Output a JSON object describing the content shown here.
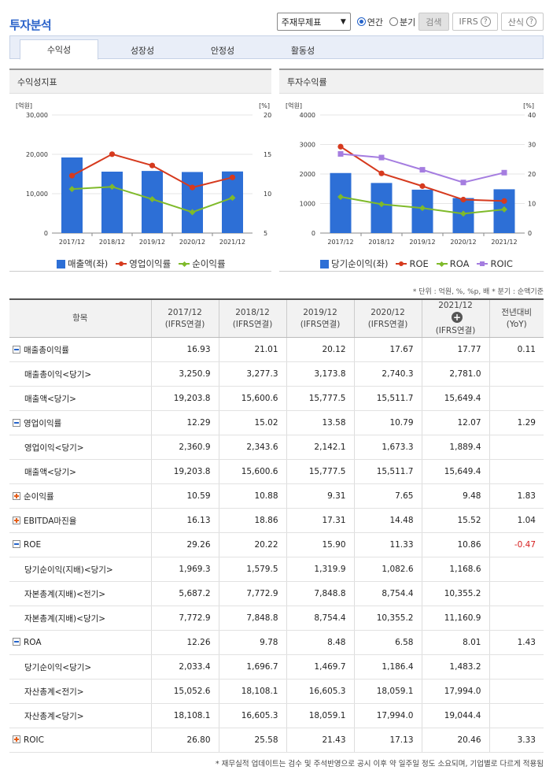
{
  "page": {
    "title": "투자분석",
    "controls": {
      "select_value": "주재무제표",
      "radio_annual": "연간",
      "radio_quarter": "분기",
      "search_btn": "검색",
      "ifrs_btn": "IFRS",
      "formula_btn": "산식",
      "selected_period": "연간"
    },
    "tabs": [
      "수익성",
      "성장성",
      "안정성",
      "활동성"
    ],
    "active_tab": "수익성"
  },
  "chart_data": [
    {
      "type": "bar+line",
      "title": "수익성지표",
      "left_unit": "[억원]",
      "right_unit": "[%]",
      "categories": [
        "2017/12",
        "2018/12",
        "2019/12",
        "2020/12",
        "2021/12"
      ],
      "ylim_left": [
        0,
        30000
      ],
      "yticks_left": [
        "0",
        "10,000",
        "20,000",
        "30,000"
      ],
      "ylim_right": [
        5,
        20
      ],
      "yticks_right": [
        "5",
        "10",
        "15",
        "20"
      ],
      "bars": {
        "name": "매출액(좌)",
        "color": "#2d6fd6",
        "values": [
          19203.8,
          15600.6,
          15777.5,
          15511.7,
          15649.4
        ]
      },
      "lines": [
        {
          "name": "영업이익률",
          "color": "#d63a1e",
          "marker": "circle",
          "values": [
            12.29,
            15.02,
            13.58,
            10.79,
            12.07
          ]
        },
        {
          "name": "순이익률",
          "color": "#7fba2a",
          "marker": "diamond",
          "values": [
            10.59,
            10.88,
            9.31,
            7.65,
            9.48
          ]
        }
      ]
    },
    {
      "type": "bar+line",
      "title": "투자수익률",
      "left_unit": "[억원]",
      "right_unit": "[%]",
      "categories": [
        "2017/12",
        "2018/12",
        "2019/12",
        "2020/12",
        "2021/12"
      ],
      "ylim_left": [
        0,
        4000
      ],
      "yticks_left": [
        "0",
        "1000",
        "2000",
        "3000",
        "4000"
      ],
      "ylim_right": [
        0,
        40
      ],
      "yticks_right": [
        "0",
        "10",
        "20",
        "30",
        "40"
      ],
      "bars": {
        "name": "당기순이익(좌)",
        "color": "#2d6fd6",
        "values": [
          2033.4,
          1696.7,
          1469.7,
          1186.4,
          1483.2
        ]
      },
      "lines": [
        {
          "name": "ROE",
          "color": "#d63a1e",
          "marker": "circle",
          "values": [
            29.26,
            20.22,
            15.9,
            11.33,
            10.86
          ]
        },
        {
          "name": "ROA",
          "color": "#7fba2a",
          "marker": "diamond",
          "values": [
            12.26,
            9.78,
            8.48,
            6.58,
            8.01
          ]
        },
        {
          "name": "ROIC",
          "color": "#a57de0",
          "marker": "square",
          "values": [
            26.8,
            25.58,
            21.43,
            17.13,
            20.46
          ]
        }
      ]
    }
  ],
  "unit_note": "* 단위 : 억원, %, %p, 배   * 분기 : 순액기준",
  "table": {
    "header_item": "항목",
    "columns": [
      {
        "period": "2017/12",
        "basis": "(IFRS연결)"
      },
      {
        "period": "2018/12",
        "basis": "(IFRS연결)"
      },
      {
        "period": "2019/12",
        "basis": "(IFRS연결)"
      },
      {
        "period": "2020/12",
        "basis": "(IFRS연결)"
      },
      {
        "period": "2021/12",
        "basis": "(IFRS연결)"
      }
    ],
    "yoy_header": "전년대비",
    "yoy_sub": "(YoY)",
    "rows": [
      {
        "label": "매출총이익률",
        "toggle": "minus",
        "sub": false,
        "values": [
          "16.93",
          "21.01",
          "20.12",
          "17.67",
          "17.77"
        ],
        "yoy": "0.11"
      },
      {
        "label": "매출총이익<당기>",
        "toggle": "",
        "sub": true,
        "values": [
          "3,250.9",
          "3,277.3",
          "3,173.8",
          "2,740.3",
          "2,781.0"
        ],
        "yoy": ""
      },
      {
        "label": "매출액<당기>",
        "toggle": "",
        "sub": true,
        "values": [
          "19,203.8",
          "15,600.6",
          "15,777.5",
          "15,511.7",
          "15,649.4"
        ],
        "yoy": ""
      },
      {
        "label": "영업이익률",
        "toggle": "minus",
        "sub": false,
        "values": [
          "12.29",
          "15.02",
          "13.58",
          "10.79",
          "12.07"
        ],
        "yoy": "1.29"
      },
      {
        "label": "영업이익<당기>",
        "toggle": "",
        "sub": true,
        "values": [
          "2,360.9",
          "2,343.6",
          "2,142.1",
          "1,673.3",
          "1,889.4"
        ],
        "yoy": ""
      },
      {
        "label": "매출액<당기>",
        "toggle": "",
        "sub": true,
        "values": [
          "19,203.8",
          "15,600.6",
          "15,777.5",
          "15,511.7",
          "15,649.4"
        ],
        "yoy": ""
      },
      {
        "label": "순이익률",
        "toggle": "plus",
        "sub": false,
        "values": [
          "10.59",
          "10.88",
          "9.31",
          "7.65",
          "9.48"
        ],
        "yoy": "1.83"
      },
      {
        "label": "EBITDA마진율",
        "toggle": "plus",
        "sub": false,
        "values": [
          "16.13",
          "18.86",
          "17.31",
          "14.48",
          "15.52"
        ],
        "yoy": "1.04"
      },
      {
        "label": "ROE",
        "toggle": "minus",
        "sub": false,
        "values": [
          "29.26",
          "20.22",
          "15.90",
          "11.33",
          "10.86"
        ],
        "yoy": "-0.47"
      },
      {
        "label": "당기순이익(지배)<당기>",
        "toggle": "",
        "sub": true,
        "values": [
          "1,969.3",
          "1,579.5",
          "1,319.9",
          "1,082.6",
          "1,168.6"
        ],
        "yoy": ""
      },
      {
        "label": "자본총계(지배)<전기>",
        "toggle": "",
        "sub": true,
        "values": [
          "5,687.2",
          "7,772.9",
          "7,848.8",
          "8,754.4",
          "10,355.2"
        ],
        "yoy": ""
      },
      {
        "label": "자본총계(지배)<당기>",
        "toggle": "",
        "sub": true,
        "values": [
          "7,772.9",
          "7,848.8",
          "8,754.4",
          "10,355.2",
          "11,160.9"
        ],
        "yoy": ""
      },
      {
        "label": "ROA",
        "toggle": "minus",
        "sub": false,
        "values": [
          "12.26",
          "9.78",
          "8.48",
          "6.58",
          "8.01"
        ],
        "yoy": "1.43"
      },
      {
        "label": "당기순이익<당기>",
        "toggle": "",
        "sub": true,
        "values": [
          "2,033.4",
          "1,696.7",
          "1,469.7",
          "1,186.4",
          "1,483.2"
        ],
        "yoy": ""
      },
      {
        "label": "자산총계<전기>",
        "toggle": "",
        "sub": true,
        "values": [
          "15,052.6",
          "18,108.1",
          "16,605.3",
          "18,059.1",
          "17,994.0"
        ],
        "yoy": ""
      },
      {
        "label": "자산총계<당기>",
        "toggle": "",
        "sub": true,
        "values": [
          "18,108.1",
          "16,605.3",
          "18,059.1",
          "17,994.0",
          "19,044.4"
        ],
        "yoy": ""
      },
      {
        "label": "ROIC",
        "toggle": "plus",
        "sub": false,
        "values": [
          "26.80",
          "25.58",
          "21.43",
          "17.13",
          "20.46"
        ],
        "yoy": "3.33"
      }
    ]
  },
  "footnote": "* 재무실적 업데이트는 검수 및 주석반영으로 공시 이후 약 일주일 정도 소요되며, 기업별로 다르게 적용됨"
}
